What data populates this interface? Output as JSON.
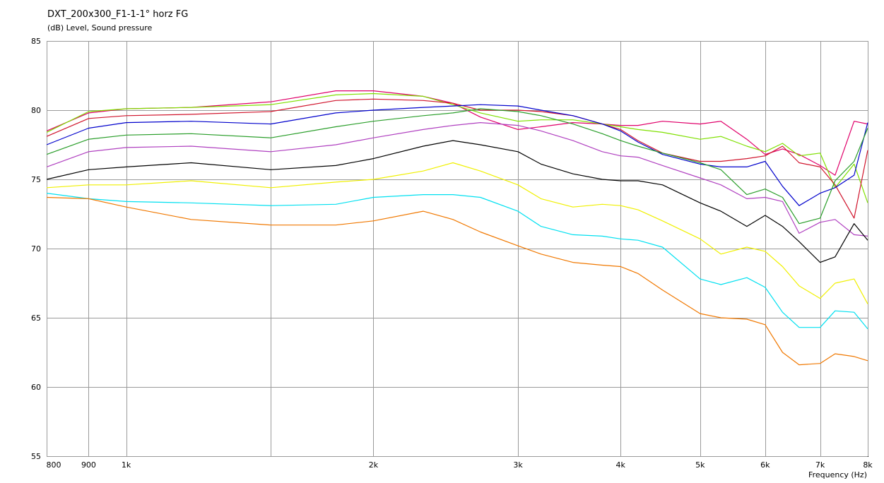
{
  "chart_data": {
    "type": "line",
    "title": "DXT_200x300_F1-1-1° horz FG",
    "subtitle": "(dB)  Level, Sound pressure",
    "xlabel": "Frequency  (Hz)",
    "ylabel": "",
    "x_scale": "log",
    "xlim": [
      800,
      8000
    ],
    "ylim": [
      55,
      85
    ],
    "grid": true,
    "y_ticks": [
      85,
      80,
      75,
      70,
      65,
      60,
      55
    ],
    "x_ticks": [
      {
        "value": 800,
        "label": "800"
      },
      {
        "value": 900,
        "label": "900"
      },
      {
        "value": 1000,
        "label": "1k"
      },
      {
        "value": 2000,
        "label": "2k"
      },
      {
        "value": 3000,
        "label": "3k"
      },
      {
        "value": 4000,
        "label": "4k"
      },
      {
        "value": 5000,
        "label": "5k"
      },
      {
        "value": 6000,
        "label": "6k"
      },
      {
        "value": 7000,
        "label": "7k"
      },
      {
        "value": 8000,
        "label": "8k"
      }
    ],
    "x_minor_gridlines": [
      1500
    ],
    "x": [
      800,
      900,
      1000,
      1200,
      1500,
      1800,
      2000,
      2300,
      2500,
      2700,
      3000,
      3200,
      3500,
      3800,
      4000,
      4200,
      4500,
      5000,
      5300,
      5700,
      6000,
      6300,
      6600,
      7000,
      7300,
      7700,
      8000
    ],
    "series": [
      {
        "color": "#e0006a",
        "values": [
          78.5,
          79.8,
          80.1,
          80.2,
          80.6,
          81.4,
          81.4,
          81.0,
          80.5,
          79.5,
          78.6,
          78.8,
          79.1,
          79.0,
          78.9,
          78.9,
          79.2,
          79.0,
          79.2,
          77.9,
          76.8,
          77.2,
          76.8,
          76.0,
          75.3,
          79.2,
          79.0
        ]
      },
      {
        "color": "#7fe000",
        "values": [
          78.4,
          79.9,
          80.1,
          80.2,
          80.4,
          81.1,
          81.2,
          81.0,
          80.4,
          79.8,
          79.2,
          79.3,
          79.3,
          79.0,
          78.8,
          78.6,
          78.4,
          77.9,
          78.1,
          77.4,
          77.0,
          77.6,
          76.7,
          76.9,
          74.4,
          76.1,
          73.3
        ]
      },
      {
        "color": "#d0142c",
        "values": [
          78.1,
          79.4,
          79.6,
          79.7,
          79.9,
          80.7,
          80.8,
          80.7,
          80.5,
          80.0,
          80.0,
          79.9,
          79.6,
          79.0,
          78.6,
          77.8,
          76.9,
          76.3,
          76.3,
          76.5,
          76.7,
          77.4,
          76.2,
          75.9,
          74.6,
          72.2,
          77.1
        ]
      },
      {
        "color": "#0000cc",
        "values": [
          77.5,
          78.7,
          79.1,
          79.2,
          79.0,
          79.8,
          80.0,
          80.2,
          80.3,
          80.4,
          80.3,
          80.0,
          79.6,
          79.0,
          78.5,
          77.7,
          76.8,
          76.1,
          75.9,
          75.9,
          76.3,
          74.5,
          73.1,
          74.0,
          74.4,
          75.3,
          79.1
        ]
      },
      {
        "color": "#2a9e2a",
        "values": [
          76.8,
          77.9,
          78.2,
          78.3,
          78.0,
          78.8,
          79.2,
          79.6,
          79.8,
          80.1,
          79.9,
          79.6,
          79.0,
          78.3,
          77.8,
          77.4,
          76.9,
          76.2,
          75.7,
          73.9,
          74.3,
          73.7,
          71.8,
          72.2,
          74.9,
          76.3,
          78.7
        ]
      },
      {
        "color": "#b040c0",
        "values": [
          75.9,
          77.0,
          77.3,
          77.4,
          77.0,
          77.5,
          78.0,
          78.6,
          78.9,
          79.1,
          78.9,
          78.5,
          77.8,
          77.0,
          76.7,
          76.6,
          76.0,
          75.1,
          74.6,
          73.6,
          73.7,
          73.4,
          71.1,
          71.9,
          72.1,
          71.0,
          70.9
        ]
      },
      {
        "color": "#000000",
        "values": [
          75.0,
          75.7,
          75.9,
          76.2,
          75.7,
          76.0,
          76.5,
          77.4,
          77.8,
          77.5,
          77.0,
          76.1,
          75.4,
          75.0,
          74.9,
          74.9,
          74.6,
          73.3,
          72.7,
          71.6,
          72.4,
          71.6,
          70.5,
          69.0,
          69.4,
          71.8,
          70.6
        ]
      },
      {
        "color": "#f0f000",
        "values": [
          74.4,
          74.6,
          74.6,
          74.9,
          74.4,
          74.8,
          75.0,
          75.6,
          76.2,
          75.6,
          74.6,
          73.6,
          73.0,
          73.2,
          73.1,
          72.8,
          72.0,
          70.7,
          69.6,
          70.1,
          69.8,
          68.7,
          67.3,
          66.4,
          67.5,
          67.8,
          66.0
        ]
      },
      {
        "color": "#00e0f0",
        "values": [
          74.0,
          73.6,
          73.4,
          73.3,
          73.1,
          73.2,
          73.7,
          73.9,
          73.9,
          73.7,
          72.7,
          71.6,
          71.0,
          70.9,
          70.7,
          70.6,
          70.1,
          67.8,
          67.4,
          67.9,
          67.2,
          65.4,
          64.3,
          64.3,
          65.5,
          65.4,
          64.2
        ]
      },
      {
        "color": "#f07800",
        "values": [
          73.7,
          73.6,
          73.0,
          72.1,
          71.7,
          71.7,
          72.0,
          72.7,
          72.1,
          71.2,
          70.2,
          69.6,
          69.0,
          68.8,
          68.7,
          68.2,
          67.0,
          65.3,
          65.0,
          64.9,
          64.5,
          62.5,
          61.6,
          61.7,
          62.4,
          62.2,
          61.9
        ]
      }
    ]
  }
}
